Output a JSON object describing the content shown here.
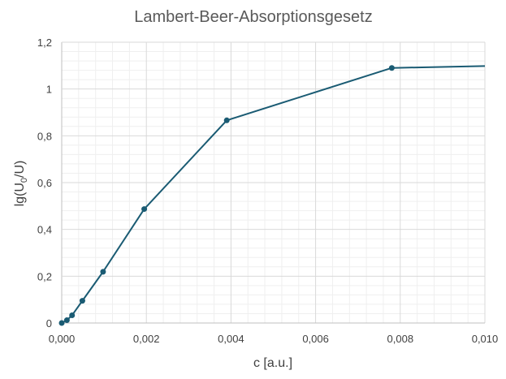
{
  "chart_data": {
    "type": "line",
    "title": "Lambert-Beer-Absorptionsgesetz",
    "xlabel": "c [a.u.]",
    "ylabel": {
      "base": "lg(U",
      "sub": "0",
      "rest": "/U)"
    },
    "xlim": [
      0,
      0.01
    ],
    "ylim": [
      0,
      1.2
    ],
    "grid": true,
    "x_ticks": [
      "0,000",
      "0,002",
      "0,004",
      "0,006",
      "0,008",
      "0,010"
    ],
    "y_ticks": [
      "0",
      "0,2",
      "0,4",
      "0,6",
      "0,8",
      "1",
      "1,2"
    ],
    "series": [
      {
        "color": "#1a5b73",
        "x": [
          0.0,
          0.000122,
          0.000244,
          0.000488,
          0.000977,
          0.00195,
          0.0039,
          0.0078,
          0.01
        ],
        "y": [
          0.0,
          0.012,
          0.033,
          0.095,
          0.219,
          0.487,
          0.866,
          1.09,
          1.098
        ],
        "markers": [
          true,
          true,
          true,
          true,
          true,
          true,
          true,
          true,
          false
        ]
      }
    ]
  }
}
